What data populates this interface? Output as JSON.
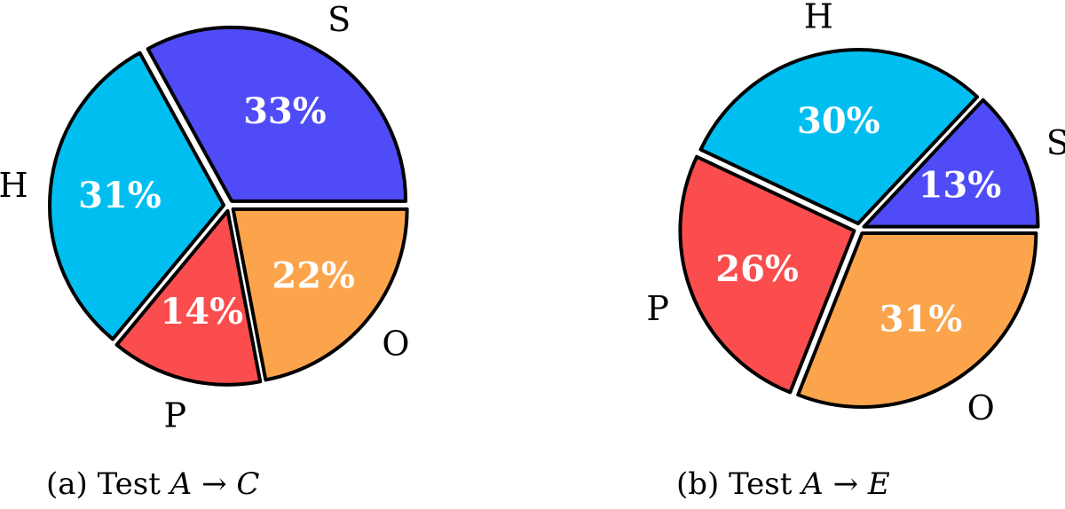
{
  "chart_data": [
    {
      "type": "pie",
      "caption": {
        "prefix": "(a) Test",
        "from": "A",
        "arrow": "→",
        "to": "C"
      },
      "slices": [
        {
          "label": "S",
          "percent_label": "33%",
          "value": 33,
          "color": "#4f4cf7"
        },
        {
          "label": "H",
          "percent_label": "31%",
          "value": 31,
          "color": "#00bff0"
        },
        {
          "label": "P",
          "percent_label": "14%",
          "value": 14,
          "color": "#fb4d4d"
        },
        {
          "label": "O",
          "percent_label": "22%",
          "value": 22,
          "color": "#fca44c"
        }
      ]
    },
    {
      "type": "pie",
      "caption": {
        "prefix": "(b) Test",
        "from": "A",
        "arrow": "→",
        "to": "E"
      },
      "slices": [
        {
          "label": "S",
          "percent_label": "13%",
          "value": 13,
          "color": "#4f4cf7"
        },
        {
          "label": "H",
          "percent_label": "30%",
          "value": 30,
          "color": "#00bff0"
        },
        {
          "label": "P",
          "percent_label": "26%",
          "value": 26,
          "color": "#fb4d4d"
        },
        {
          "label": "O",
          "percent_label": "31%",
          "value": 31,
          "color": "#fca44c"
        }
      ]
    }
  ]
}
